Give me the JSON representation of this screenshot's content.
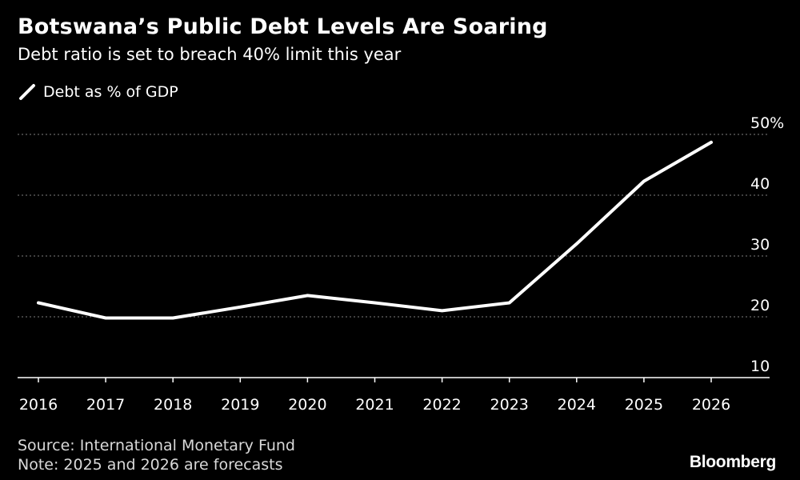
{
  "title": "Botswana’s Public Debt Levels Are Soaring",
  "subtitle": "Debt ratio is set to breach 40% limit this year",
  "legend": {
    "label": "Debt as % of GDP"
  },
  "footer": {
    "source": "Source: International Monetary Fund",
    "note": "Note: 2025 and 2026 are forecasts"
  },
  "brand": "Bloomberg",
  "colors": {
    "background": "#000000",
    "line": "#ffffff",
    "grid": "#7f7f7f",
    "text": "#ffffff"
  },
  "chart_data": {
    "type": "line",
    "title": "Botswana’s Public Debt Levels Are Soaring",
    "subtitle": "Debt ratio is set to breach 40% limit this year",
    "x": [
      "2016",
      "2017",
      "2018",
      "2019",
      "2020",
      "2021",
      "2022",
      "2023",
      "2024",
      "2025",
      "2026"
    ],
    "series": [
      {
        "name": "Debt as % of GDP",
        "values": [
          22.3,
          19.8,
          19.8,
          21.6,
          23.5,
          22.3,
          21.0,
          22.3,
          32.0,
          42.3,
          48.7
        ]
      }
    ],
    "ylim": [
      10,
      50
    ],
    "yticks": [
      10,
      20,
      30,
      40,
      50
    ],
    "ytick_labels": [
      "10",
      "20",
      "30",
      "40",
      "50%"
    ],
    "grid": "horizontal dotted",
    "y_axis_position": "right",
    "legend_position": "top-left",
    "xlabel": "",
    "ylabel": ""
  }
}
